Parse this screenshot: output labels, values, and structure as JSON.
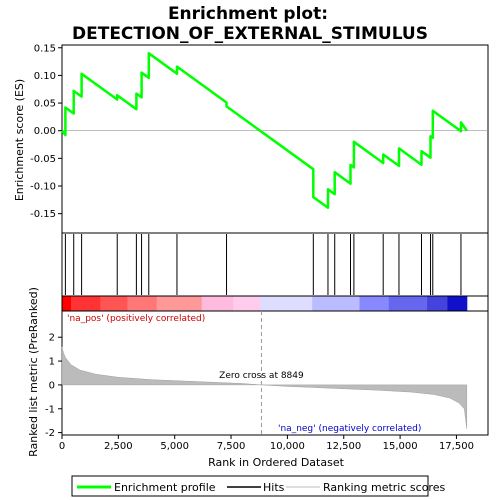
{
  "chart_data": {
    "type": "line",
    "title_line1": "Enrichment plot:",
    "title_line2": "DETECTION_OF_EXTERNAL_STIMULUS",
    "es_ylabel": "Enrichment score (ES)",
    "metric_ylabel": "Ranked list metric (PreRanked)",
    "xlabel": "Rank in Ordered Dataset",
    "x_range": [
      0,
      18900
    ],
    "es_ylim": [
      -0.185,
      0.155
    ],
    "metric_ylim": [
      -2.1,
      3.1
    ],
    "x_ticks": [
      0,
      2500,
      5000,
      7500,
      10000,
      12500,
      15000,
      17500
    ],
    "x_tick_labels": [
      "0",
      "2,500",
      "5,000",
      "7,500",
      "10,000",
      "12,500",
      "15,000",
      "17,500"
    ],
    "es_ticks": [
      0.15,
      0.1,
      0.05,
      0.0,
      -0.05,
      -0.1,
      -0.15
    ],
    "es_tick_labels": [
      "0.15",
      "0.10",
      "0.05",
      "0.00",
      "-0.05",
      "-0.10",
      "-0.15"
    ],
    "metric_ticks": [
      2,
      1,
      0,
      -1,
      -2
    ],
    "metric_tick_labels": [
      "2",
      "1",
      "0",
      "-1",
      "-2"
    ],
    "n_genes": 17960,
    "zero_cross_rank": 8849,
    "zero_cross_label": "Zero cross at 8849",
    "pos_label": "'na_pos' (positively correlated)",
    "neg_label": "'na_neg' (negatively correlated)",
    "hits": [
      150,
      520,
      870,
      2450,
      3300,
      3530,
      3850,
      5100,
      7300,
      11150,
      11800,
      12100,
      12800,
      12950,
      14250,
      14950,
      15950,
      16350,
      16450,
      17700
    ],
    "es_start": 0.0,
    "es_peaks": [
      0.042,
      0.072,
      0.103,
      0.064,
      0.067,
      0.105,
      0.14,
      0.116,
      0.044,
      -0.12,
      -0.106,
      -0.075,
      -0.062,
      -0.02,
      -0.043,
      -0.032,
      -0.037,
      -0.01,
      0.036,
      0.015
    ],
    "es_end": 0.0,
    "metric_curve": [
      [
        0,
        1.6
      ],
      [
        60,
        1.35
      ],
      [
        150,
        1.15
      ],
      [
        400,
        0.85
      ],
      [
        800,
        0.62
      ],
      [
        1500,
        0.45
      ],
      [
        2500,
        0.32
      ],
      [
        4000,
        0.22
      ],
      [
        6000,
        0.14
      ],
      [
        8000,
        0.06
      ],
      [
        8849,
        0.0
      ],
      [
        10000,
        -0.06
      ],
      [
        12000,
        -0.14
      ],
      [
        14000,
        -0.22
      ],
      [
        15500,
        -0.3
      ],
      [
        16500,
        -0.4
      ],
      [
        17200,
        -0.55
      ],
      [
        17600,
        -0.75
      ],
      [
        17850,
        -1.0
      ],
      [
        17960,
        -1.85
      ]
    ],
    "bar_segments": [
      {
        "from": 0,
        "to": 400,
        "color": "#ff0000"
      },
      {
        "from": 400,
        "to": 1700,
        "color": "#ff3333"
      },
      {
        "from": 1700,
        "to": 2900,
        "color": "#ff5555"
      },
      {
        "from": 2900,
        "to": 4200,
        "color": "#ff7777"
      },
      {
        "from": 4200,
        "to": 6200,
        "color": "#ff9999"
      },
      {
        "from": 6200,
        "to": 7600,
        "color": "#ffbbdd"
      },
      {
        "from": 7600,
        "to": 8800,
        "color": "#ffccee"
      },
      {
        "from": 8800,
        "to": 11100,
        "color": "#ddddff"
      },
      {
        "from": 11100,
        "to": 13200,
        "color": "#bbbbff"
      },
      {
        "from": 13200,
        "to": 14500,
        "color": "#8888ff"
      },
      {
        "from": 14500,
        "to": 16200,
        "color": "#6666ee"
      },
      {
        "from": 16200,
        "to": 17100,
        "color": "#4444dd"
      },
      {
        "from": 17100,
        "to": 17960,
        "color": "#1111cc"
      }
    ],
    "legend": [
      {
        "label": "Enrichment profile",
        "color": "#00ff00"
      },
      {
        "label": "Hits",
        "color": "#000000"
      },
      {
        "label": "Ranking metric scores",
        "color": "#bbbbbb"
      }
    ]
  }
}
